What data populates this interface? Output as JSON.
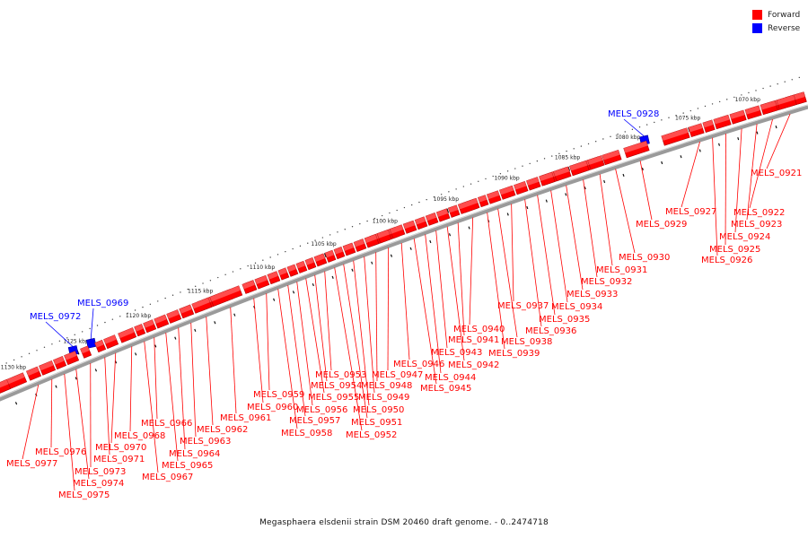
{
  "legend": {
    "forward_label": "Forward",
    "reverse_label": "Reverse",
    "forward_color": "#ff0000",
    "reverse_color": "#0000ff"
  },
  "caption": "Megasphaera elsdenii strain DSM 20460 draft genome. - 0..2474718",
  "scale_labels": [
    "1070 kbp",
    "1075 kbp",
    "1080 kbp",
    "1085 kbp",
    "1090 kbp",
    "1095 kbp",
    "1100 kbp",
    "1105 kbp",
    "1110 kbp",
    "1115 kbp",
    "1120 kbp",
    "1125 kbp",
    "1130 kbp"
  ],
  "genes": [
    {
      "name": "MELS_0921",
      "strand": "forward"
    },
    {
      "name": "MELS_0922",
      "strand": "forward"
    },
    {
      "name": "MELS_0923",
      "strand": "forward"
    },
    {
      "name": "MELS_0924",
      "strand": "forward"
    },
    {
      "name": "MELS_0925",
      "strand": "forward"
    },
    {
      "name": "MELS_0926",
      "strand": "forward"
    },
    {
      "name": "MELS_0927",
      "strand": "forward"
    },
    {
      "name": "MELS_0928",
      "strand": "reverse"
    },
    {
      "name": "MELS_0929",
      "strand": "forward"
    },
    {
      "name": "MELS_0930",
      "strand": "forward"
    },
    {
      "name": "MELS_0931",
      "strand": "forward"
    },
    {
      "name": "MELS_0932",
      "strand": "forward"
    },
    {
      "name": "MELS_0933",
      "strand": "forward"
    },
    {
      "name": "MELS_0934",
      "strand": "forward"
    },
    {
      "name": "MELS_0935",
      "strand": "forward"
    },
    {
      "name": "MELS_0936",
      "strand": "forward"
    },
    {
      "name": "MELS_0937",
      "strand": "forward"
    },
    {
      "name": "MELS_0938",
      "strand": "forward"
    },
    {
      "name": "MELS_0939",
      "strand": "forward"
    },
    {
      "name": "MELS_0940",
      "strand": "forward"
    },
    {
      "name": "MELS_0941",
      "strand": "forward"
    },
    {
      "name": "MELS_0942",
      "strand": "forward"
    },
    {
      "name": "MELS_0943",
      "strand": "forward"
    },
    {
      "name": "MELS_0944",
      "strand": "forward"
    },
    {
      "name": "MELS_0945",
      "strand": "forward"
    },
    {
      "name": "MELS_0946",
      "strand": "forward"
    },
    {
      "name": "MELS_0947",
      "strand": "forward"
    },
    {
      "name": "MELS_0948",
      "strand": "forward"
    },
    {
      "name": "MELS_0949",
      "strand": "forward"
    },
    {
      "name": "MELS_0950",
      "strand": "forward"
    },
    {
      "name": "MELS_0951",
      "strand": "forward"
    },
    {
      "name": "MELS_0952",
      "strand": "forward"
    },
    {
      "name": "MELS_0953",
      "strand": "forward"
    },
    {
      "name": "MELS_0954",
      "strand": "forward"
    },
    {
      "name": "MELS_0955",
      "strand": "forward"
    },
    {
      "name": "MELS_0956",
      "strand": "forward"
    },
    {
      "name": "MELS_0957",
      "strand": "forward"
    },
    {
      "name": "MELS_0958",
      "strand": "forward"
    },
    {
      "name": "MELS_0959",
      "strand": "forward"
    },
    {
      "name": "MELS_0960",
      "strand": "forward"
    },
    {
      "name": "MELS_0961",
      "strand": "forward"
    },
    {
      "name": "MELS_0962",
      "strand": "forward"
    },
    {
      "name": "MELS_0963",
      "strand": "forward"
    },
    {
      "name": "MELS_0964",
      "strand": "forward"
    },
    {
      "name": "MELS_0965",
      "strand": "forward"
    },
    {
      "name": "MELS_0966",
      "strand": "forward"
    },
    {
      "name": "MELS_0967",
      "strand": "forward"
    },
    {
      "name": "MELS_0968",
      "strand": "forward"
    },
    {
      "name": "MELS_0969",
      "strand": "reverse"
    },
    {
      "name": "MELS_0970",
      "strand": "forward"
    },
    {
      "name": "MELS_0971",
      "strand": "forward"
    },
    {
      "name": "MELS_0972",
      "strand": "reverse"
    },
    {
      "name": "MELS_0973",
      "strand": "forward"
    },
    {
      "name": "MELS_0974",
      "strand": "forward"
    },
    {
      "name": "MELS_0975",
      "strand": "forward"
    },
    {
      "name": "MELS_0976",
      "strand": "forward"
    },
    {
      "name": "MELS_0977",
      "strand": "forward"
    }
  ]
}
